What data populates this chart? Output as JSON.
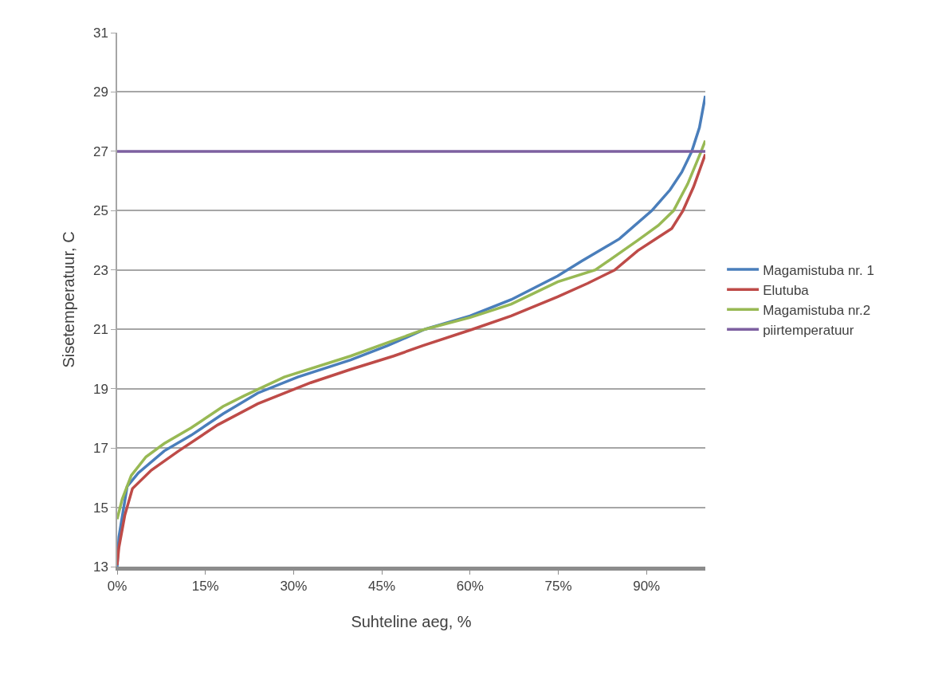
{
  "chart_data": {
    "type": "line",
    "xlabel": "Suhteline aeg, %",
    "ylabel": "Sisetemperatuur, C",
    "xlim": [
      0,
      100
    ],
    "xticks": [
      {
        "value": 0,
        "label": "0%"
      },
      {
        "value": 15,
        "label": "15%"
      },
      {
        "value": 30,
        "label": "30%"
      },
      {
        "value": 45,
        "label": "45%"
      },
      {
        "value": 60,
        "label": "60%"
      },
      {
        "value": 75,
        "label": "75%"
      },
      {
        "value": 90,
        "label": "90%"
      }
    ],
    "ylim": [
      13,
      31
    ],
    "yticks": [
      13,
      15,
      17,
      19,
      21,
      23,
      25,
      27,
      29,
      31
    ],
    "grid": "y",
    "legend": "right",
    "marker": "none",
    "line_style": "solid",
    "series": [
      {
        "name": "Magamistuba nr. 1",
        "color": "#4a7ebb",
        "x": [
          0,
          0.3,
          1.7,
          3.6,
          8,
          12.6,
          18,
          23.9,
          30.7,
          39.7,
          46,
          52.3,
          60,
          67,
          74.9,
          79,
          85.4,
          90.9,
          94,
          96,
          97.7,
          99,
          100
        ],
        "values": [
          13.0,
          14.0,
          15.7,
          16.16,
          16.9,
          17.43,
          18.15,
          18.85,
          19.39,
          19.97,
          20.45,
          21.0,
          21.45,
          22.0,
          22.8,
          23.3,
          24.05,
          25.0,
          25.7,
          26.3,
          27.0,
          27.8,
          28.87
        ]
      },
      {
        "name": "Elutuba",
        "color": "#be4b48",
        "x": [
          0,
          0.3,
          1.3,
          2.6,
          5.8,
          10.3,
          17.1,
          23.9,
          32.9,
          39.7,
          47,
          52,
          60.4,
          67,
          74.9,
          80,
          84.6,
          88.5,
          92,
          94.3,
          96.2,
          98,
          100
        ],
        "values": [
          13.05,
          13.65,
          14.73,
          15.63,
          16.25,
          16.88,
          17.78,
          18.49,
          19.2,
          19.65,
          20.1,
          20.45,
          21.0,
          21.45,
          22.1,
          22.55,
          23.0,
          23.65,
          24.1,
          24.4,
          25.0,
          25.8,
          26.9
        ]
      },
      {
        "name": "Magamistuba nr.2",
        "color": "#98b954",
        "x": [
          0,
          0.85,
          2.4,
          4.9,
          8,
          12.6,
          18,
          21.6,
          28.4,
          39.7,
          46,
          52.3,
          60,
          67,
          74.9,
          81.3,
          88.5,
          92,
          94.6,
          97,
          99.3,
          100
        ],
        "values": [
          14.6,
          15.27,
          16.07,
          16.7,
          17.15,
          17.68,
          18.4,
          18.76,
          19.39,
          20.1,
          20.55,
          21.0,
          21.4,
          21.85,
          22.6,
          23.0,
          24.0,
          24.5,
          25.0,
          25.9,
          27.0,
          27.36
        ]
      },
      {
        "name": "piirtemperatuur",
        "color": "#7d60a0",
        "x": [
          0,
          100
        ],
        "values": [
          27,
          27
        ]
      }
    ]
  }
}
